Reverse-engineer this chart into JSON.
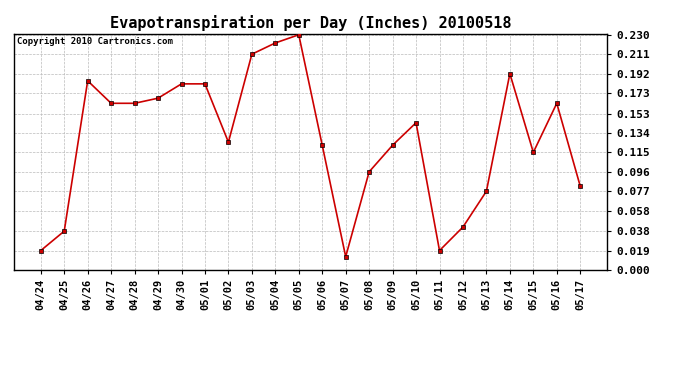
{
  "title": "Evapotranspiration per Day (Inches) 20100518",
  "copyright": "Copyright 2010 Cartronics.com",
  "x_labels": [
    "04/24",
    "04/25",
    "04/26",
    "04/27",
    "04/28",
    "04/29",
    "04/30",
    "05/01",
    "05/02",
    "05/03",
    "05/04",
    "05/05",
    "05/06",
    "05/07",
    "05/08",
    "05/09",
    "05/10",
    "05/11",
    "05/12",
    "05/13",
    "05/14",
    "05/15",
    "05/16",
    "05/17"
  ],
  "y_values": [
    0.019,
    0.038,
    0.185,
    0.163,
    0.163,
    0.168,
    0.182,
    0.182,
    0.125,
    0.211,
    0.222,
    0.23,
    0.122,
    0.013,
    0.096,
    0.122,
    0.144,
    0.019,
    0.042,
    0.077,
    0.192,
    0.115,
    0.163,
    0.082
  ],
  "y_ticks": [
    0.0,
    0.019,
    0.038,
    0.058,
    0.077,
    0.096,
    0.115,
    0.134,
    0.153,
    0.173,
    0.192,
    0.211,
    0.23
  ],
  "y_min": 0.0,
  "y_max": 0.23,
  "line_color": "#cc0000",
  "marker_color": "#cc0000",
  "bg_color": "#ffffff",
  "grid_color": "#bbbbbb",
  "title_fontsize": 11,
  "copyright_fontsize": 6.5,
  "tick_fontsize": 7.5,
  "ytick_fontsize": 8
}
